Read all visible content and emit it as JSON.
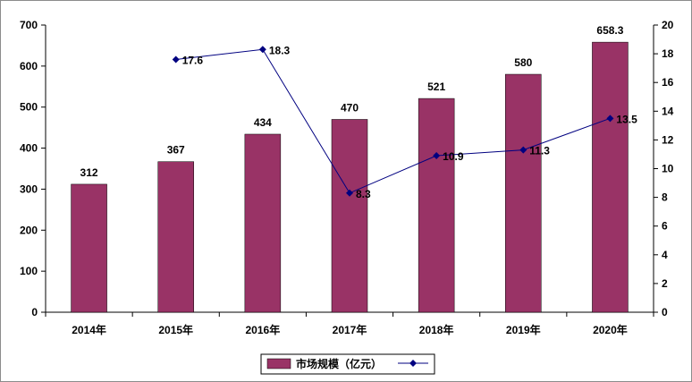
{
  "chart_data": {
    "type": "bar+line",
    "categories": [
      "2014年",
      "2015年",
      "2016年",
      "2017年",
      "2018年",
      "2019年",
      "2020年"
    ],
    "series": [
      {
        "name": "市场规模（亿元）",
        "type": "bar",
        "axis": "left",
        "values": [
          312,
          367,
          434,
          470,
          521,
          580,
          658.3
        ],
        "value_labels": [
          "312",
          "367",
          "434",
          "470",
          "521",
          "580",
          "658.3"
        ],
        "color": "#993366"
      },
      {
        "name": "",
        "type": "line",
        "axis": "right",
        "values": [
          null,
          17.6,
          18.3,
          8.3,
          10.9,
          11.3,
          13.5
        ],
        "value_labels": [
          "",
          "17.6",
          "18.3",
          "8.3",
          "10.9",
          "11.3",
          "13.5"
        ],
        "color": "#000080"
      }
    ],
    "y_left": {
      "min": 0,
      "max": 700,
      "ticks": [
        "0",
        "100",
        "200",
        "300",
        "400",
        "500",
        "600",
        "700"
      ]
    },
    "y_right": {
      "min": 0,
      "max": 20,
      "ticks": [
        "0",
        "2",
        "4",
        "6",
        "8",
        "10",
        "12",
        "14",
        "16",
        "18",
        "20"
      ]
    },
    "grid": false,
    "legend_position": "bottom-center"
  }
}
